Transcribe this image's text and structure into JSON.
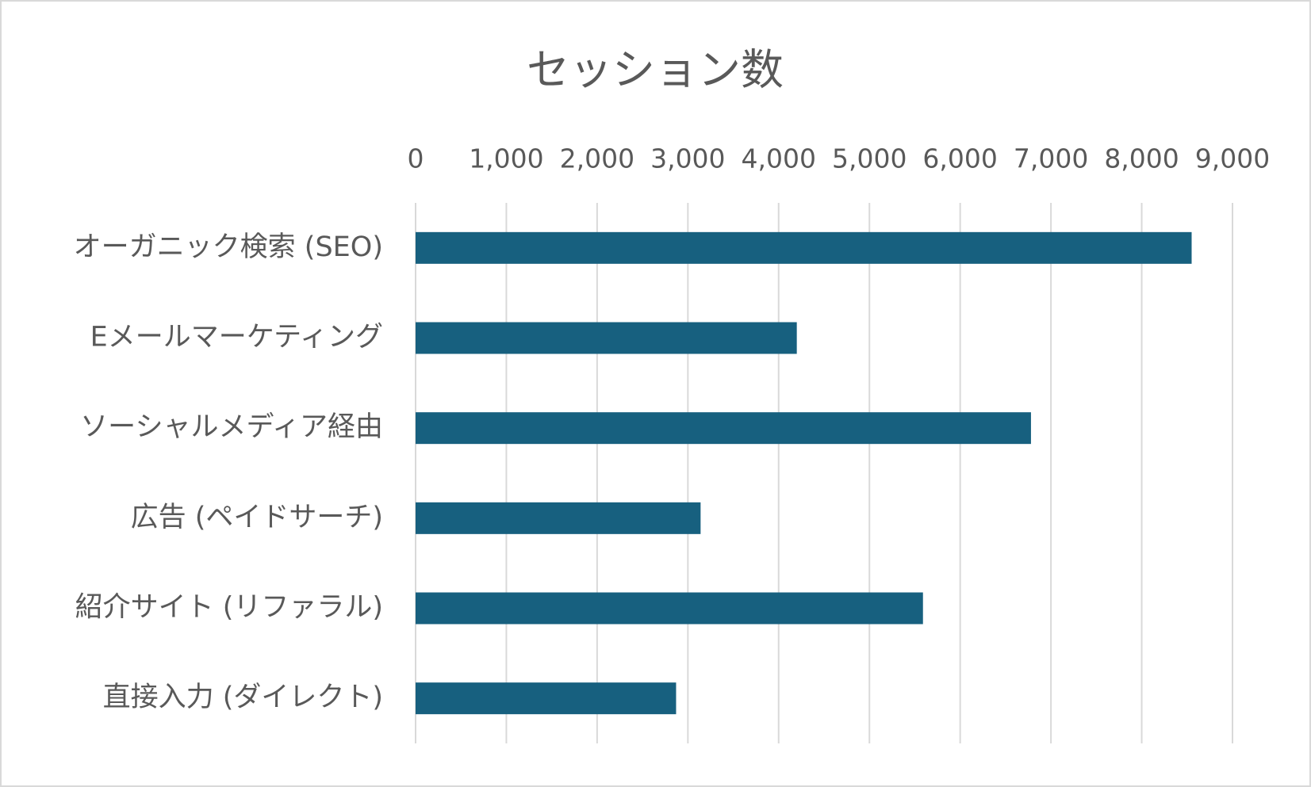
{
  "chart_data": {
    "type": "bar",
    "orientation": "horizontal",
    "title": "セッション数",
    "categories": [
      "オーガニック検索 (SEO)",
      "Eメールマーケティング",
      "ソーシャルメディア経由",
      "広告 (ペイドサーチ)",
      "紹介サイト (リファラル)",
      "直接入力 (ダイレクト)"
    ],
    "values": [
      8550,
      4200,
      6780,
      3140,
      5590,
      2870
    ],
    "color": "#17607f",
    "xlim": [
      0,
      9000
    ],
    "xticks": [
      0,
      {
        "value": 1000,
        "label": "1,000"
      },
      {
        "value": 2000,
        "label": "2,000"
      },
      {
        "value": 3000,
        "label": "3,000"
      },
      {
        "value": 4000,
        "label": "4,000"
      },
      {
        "value": 5000,
        "label": "5,000"
      },
      {
        "value": 6000,
        "label": "6,000"
      },
      {
        "value": 7000,
        "label": "7,000"
      },
      {
        "value": 8000,
        "label": "8,000"
      },
      {
        "value": 9000,
        "label": "9,000"
      }
    ],
    "grid": true
  }
}
